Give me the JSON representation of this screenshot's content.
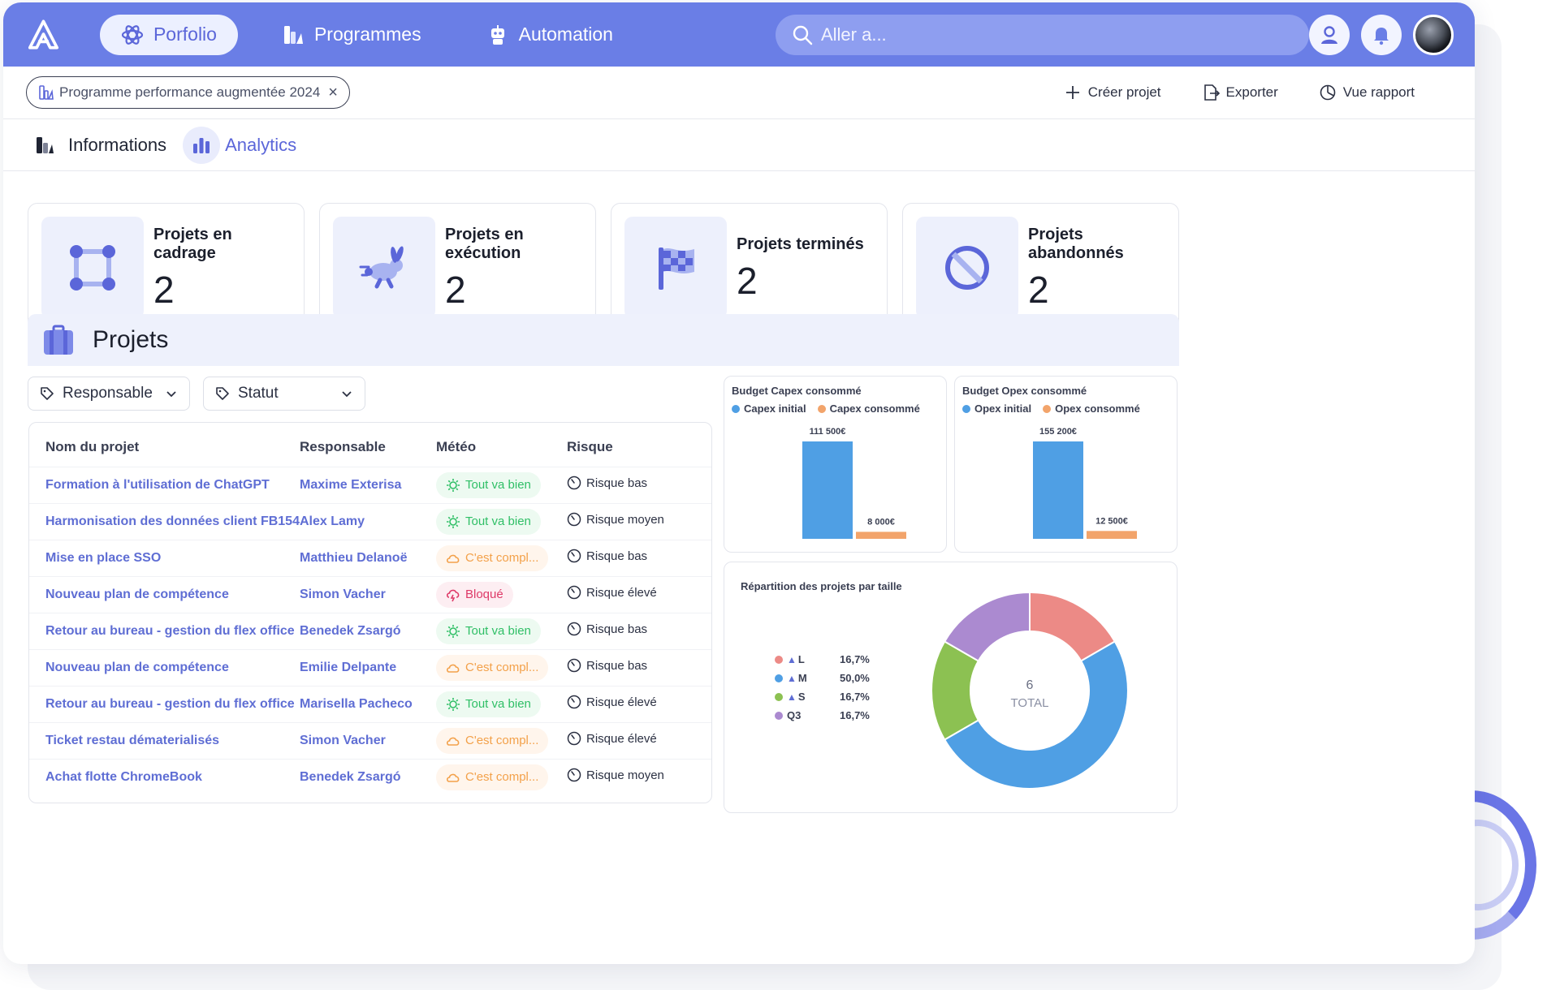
{
  "nav": {
    "items": [
      {
        "label": "Porfolio",
        "active": true
      },
      {
        "label": "Programmes",
        "active": false
      },
      {
        "label": "Automation",
        "active": false
      }
    ],
    "search_placeholder": "Aller a..."
  },
  "subbar": {
    "program_chip": "Programme performance augmentée 2024",
    "actions": [
      "Créer projet",
      "Exporter",
      "Vue rapport"
    ]
  },
  "tabs": [
    {
      "label": "Informations",
      "active": false
    },
    {
      "label": "Analytics",
      "active": true
    }
  ],
  "kpis": [
    {
      "label": "Projets en cadrage",
      "value": "2",
      "icon": "frame-icon"
    },
    {
      "label": "Projets en exécution",
      "value": "2",
      "icon": "rabbit-icon"
    },
    {
      "label": "Projets terminés",
      "value": "2",
      "icon": "flag-icon"
    },
    {
      "label": "Projets abandonnés",
      "value": "2",
      "icon": "ban-icon"
    }
  ],
  "section": {
    "title": "Projets"
  },
  "filters": [
    {
      "label": "Responsable"
    },
    {
      "label": "Statut"
    }
  ],
  "table": {
    "headers": [
      "Nom du projet",
      "Responsable",
      "Météo",
      "Risque"
    ],
    "rows": [
      {
        "name": "Formation à l'utilisation de ChatGPT",
        "owner": "Maxime Exterisa",
        "meteo": "Tout va bien",
        "meteo_type": "good",
        "risk": "Risque bas"
      },
      {
        "name": "Harmonisation des données client FB154",
        "owner": "Alex Lamy",
        "meteo": "Tout va bien",
        "meteo_type": "good",
        "risk": "Risque moyen"
      },
      {
        "name": "Mise en place SSO",
        "owner": "Matthieu Delanoë",
        "meteo": "C'est compl...",
        "meteo_type": "warn",
        "risk": "Risque bas"
      },
      {
        "name": "Nouveau plan de compétence",
        "owner": "Simon Vacher",
        "meteo": "Bloqué",
        "meteo_type": "bad",
        "risk": "Risque élevé"
      },
      {
        "name": "Retour au bureau - gestion du flex office",
        "owner": "Benedek Zsargó",
        "meteo": "Tout va bien",
        "meteo_type": "good",
        "risk": "Risque bas"
      },
      {
        "name": "Nouveau plan de compétence",
        "owner": "Emilie Delpante",
        "meteo": "C'est compl...",
        "meteo_type": "warn",
        "risk": "Risque bas"
      },
      {
        "name": "Retour au bureau - gestion du flex office",
        "owner": "Marisella Pacheco",
        "meteo": "Tout va bien",
        "meteo_type": "good",
        "risk": "Risque élevé"
      },
      {
        "name": "Ticket restau dématerialisés",
        "owner": "Simon Vacher",
        "meteo": "C'est compl...",
        "meteo_type": "warn",
        "risk": "Risque élevé"
      },
      {
        "name": "Achat flotte ChromeBook",
        "owner": "Benedek Zsargó",
        "meteo": "C'est compl...",
        "meteo_type": "warn",
        "risk": "Risque moyen"
      }
    ]
  },
  "colors": {
    "blue": "#4f9fe4",
    "orange": "#f2a46b",
    "accent": "#6a7ee6"
  },
  "chart_data": [
    {
      "type": "bar",
      "title": "Budget Capex consommé",
      "categories": [
        "Capex initial",
        "Capex consommé"
      ],
      "values": [
        111500,
        8000
      ],
      "value_labels": [
        "111 500€",
        "8 000€"
      ],
      "colors": [
        "#4f9fe4",
        "#f2a46b"
      ],
      "ylim": [
        0,
        111500
      ]
    },
    {
      "type": "bar",
      "title": "Budget Opex consommé",
      "categories": [
        "Opex initial",
        "Opex consommé"
      ],
      "values": [
        155200,
        12500
      ],
      "value_labels": [
        "155 200€",
        "12 500€"
      ],
      "colors": [
        "#4f9fe4",
        "#f2a46b"
      ],
      "ylim": [
        0,
        155200
      ]
    },
    {
      "type": "pie",
      "title": "Répartition des projets par taille",
      "categories": [
        "L",
        "M",
        "S",
        "Q3"
      ],
      "values": [
        1,
        3,
        1,
        1
      ],
      "percent_labels": [
        "16,7%",
        "50,0%",
        "16,7%",
        "16,7%"
      ],
      "colors": [
        "#ec8a86",
        "#4f9fe4",
        "#8cc152",
        "#ab8ad0"
      ],
      "center_value": "6",
      "center_label": "TOTAL"
    }
  ]
}
